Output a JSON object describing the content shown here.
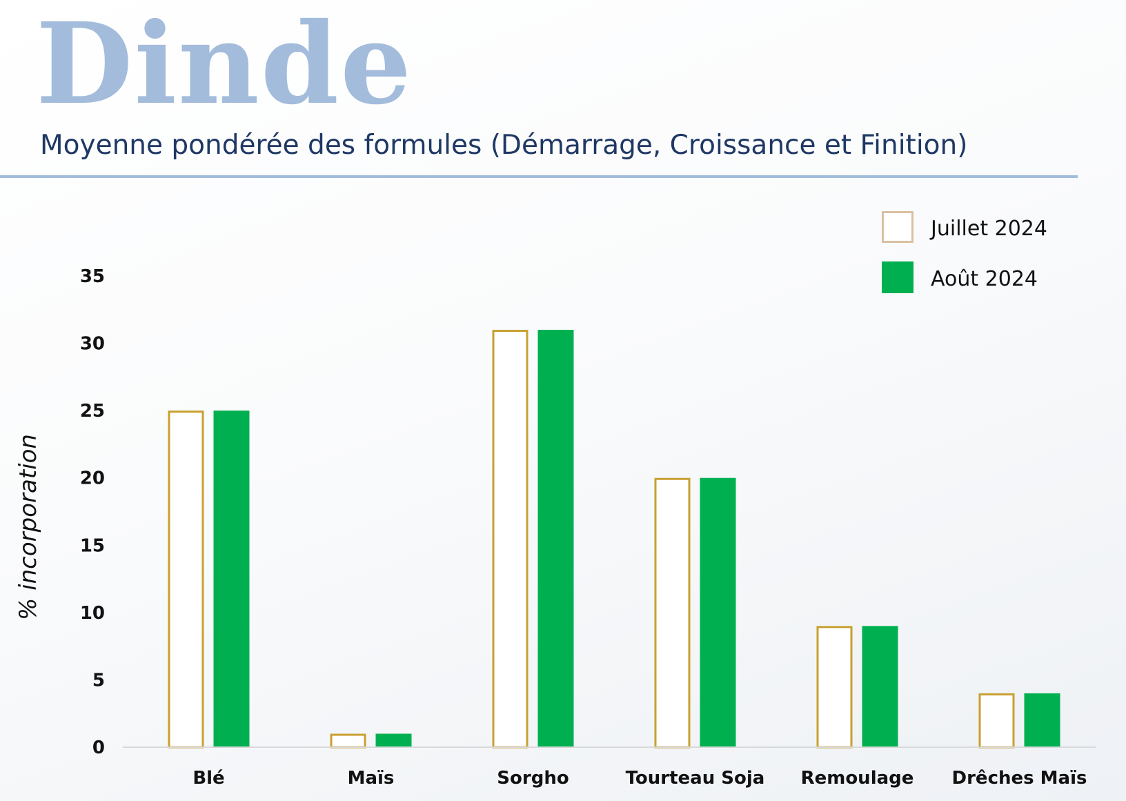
{
  "header": {
    "title": "Dinde",
    "subtitle": "Moyenne pondérée des formules (Démarrage, Croissance et Finition)"
  },
  "chart_data": {
    "type": "bar",
    "title": "Dinde",
    "subtitle": "Moyenne pondérée des formules (Démarrage, Croissance et Finition)",
    "xlabel": "",
    "ylabel": "% incorporation",
    "ylim": [
      0,
      35
    ],
    "yticks": [
      "0",
      "5",
      "10",
      "15",
      "20",
      "25",
      "30",
      "35"
    ],
    "grid": false,
    "legend_position": "top-right",
    "categories": [
      "Blé",
      "Maïs",
      "Sorgho",
      "Tourteau Soja",
      "Remoulage",
      "Drêches Maïs"
    ],
    "series": [
      {
        "name": "Juillet 2024",
        "values": [
          25,
          1,
          31,
          20,
          9,
          4
        ],
        "style": "outline",
        "color": "#c8a030"
      },
      {
        "name": "Août 2024",
        "values": [
          25,
          1,
          31,
          20,
          9,
          4
        ],
        "style": "filled",
        "color": "#00b050"
      }
    ],
    "legend_swatch_outline_color": "#d9c0a0",
    "axis_color": "#d9d9d9"
  }
}
